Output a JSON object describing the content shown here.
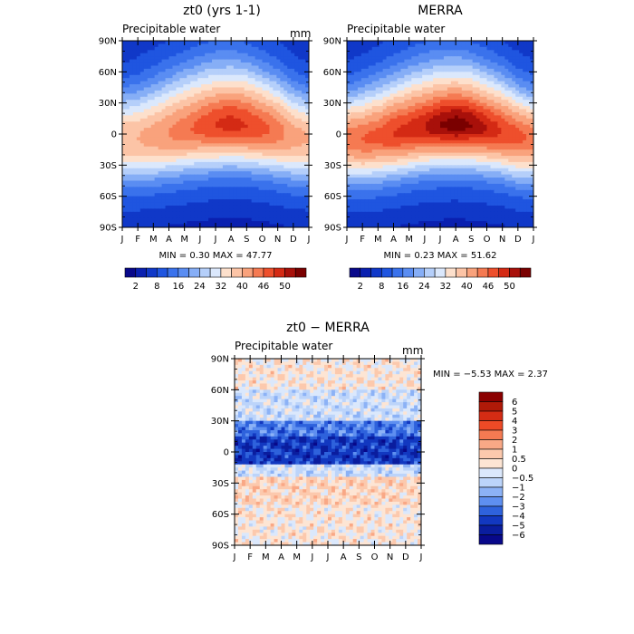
{
  "chart_data": [
    {
      "type": "heatmap",
      "title": "zt0 (yrs 1-1)",
      "subtitle": "Precipitable water",
      "units": "mm",
      "x": [
        "J",
        "F",
        "M",
        "A",
        "M",
        "J",
        "J",
        "A",
        "S",
        "O",
        "N",
        "D",
        "J"
      ],
      "y": [
        "90N",
        "60N",
        "30N",
        "0",
        "30S",
        "60S",
        "90S"
      ],
      "ylim": [
        -90,
        90
      ],
      "stats": "MIN =    0.30 MAX =   47.77",
      "colorbar": {
        "labels": [
          "2",
          "8",
          "16",
          "24",
          "32",
          "40",
          "46",
          "50"
        ],
        "colors": [
          "#08088a",
          "#0a20b0",
          "#1038c8",
          "#1f55e0",
          "#3a72ec",
          "#5a8df2",
          "#86aef6",
          "#b5cffa",
          "#dbe8fc",
          "#fde0cc",
          "#fcc4a6",
          "#f9a27c",
          "#f57a52",
          "#ee4f2c",
          "#d42a14",
          "#a8100a",
          "#7a0000"
        ]
      },
      "max_precip_by_month": [
        36,
        36,
        38,
        40,
        42,
        44,
        46,
        47,
        46,
        44,
        42,
        38,
        36
      ],
      "itcz_latitude_by_month": [
        -5,
        -5,
        -3,
        0,
        3,
        6,
        8,
        9,
        8,
        5,
        2,
        -3,
        -5
      ]
    },
    {
      "type": "heatmap",
      "title": "MERRA",
      "subtitle": "Precipitable water",
      "units": "",
      "x": [
        "J",
        "F",
        "M",
        "A",
        "M",
        "J",
        "J",
        "A",
        "S",
        "O",
        "N",
        "D",
        "J"
      ],
      "y": [
        "90N",
        "60N",
        "30N",
        "0",
        "30S",
        "60S",
        "90S"
      ],
      "ylim": [
        -90,
        90
      ],
      "stats": "MIN =    0.23 MAX =   51.62",
      "colorbar": {
        "labels": [
          "2",
          "8",
          "16",
          "24",
          "32",
          "40",
          "46",
          "50"
        ],
        "colors": [
          "#08088a",
          "#0a20b0",
          "#1038c8",
          "#1f55e0",
          "#3a72ec",
          "#5a8df2",
          "#86aef6",
          "#b5cffa",
          "#dbe8fc",
          "#fde0cc",
          "#fcc4a6",
          "#f9a27c",
          "#f57a52",
          "#ee4f2c",
          "#d42a14",
          "#a8100a",
          "#7a0000"
        ]
      },
      "max_precip_by_month": [
        42,
        43,
        44,
        46,
        47,
        48,
        50,
        51,
        50,
        48,
        46,
        44,
        42
      ],
      "itcz_latitude_by_month": [
        -5,
        -5,
        -3,
        0,
        3,
        6,
        8,
        9,
        8,
        5,
        2,
        -3,
        -5
      ]
    },
    {
      "type": "heatmap",
      "title": "zt0 − MERRA",
      "subtitle": "Precipitable water",
      "units": "mm",
      "x": [
        "J",
        "F",
        "M",
        "A",
        "M",
        "J",
        "J",
        "A",
        "S",
        "O",
        "N",
        "D",
        "J"
      ],
      "y": [
        "90N",
        "60N",
        "30N",
        "0",
        "30S",
        "60S",
        "90S"
      ],
      "ylim": [
        -90,
        90
      ],
      "stats": "MIN =  −5.53 MAX =    2.37",
      "colorbar": {
        "labels": [
          "6",
          "5",
          "4",
          "3",
          "2",
          "1",
          "0.5",
          "0",
          "−0.5",
          "−1",
          "−2",
          "−3",
          "−4",
          "−5",
          "−6"
        ],
        "colors": [
          "#8b0000",
          "#b01a08",
          "#d42c14",
          "#ee4a26",
          "#f57a52",
          "#f9a886",
          "#fcc9ad",
          "#fde5d4",
          "#dbe8fc",
          "#bcd4fa",
          "#8cb2f6",
          "#5e8ff0",
          "#2e62dc",
          "#1238c0",
          "#0a1d9e",
          "#08088a"
        ]
      },
      "latitude_band_difference": [
        {
          "lat_from": 90,
          "lat_to": 60,
          "diff": 0.2
        },
        {
          "lat_from": 60,
          "lat_to": 30,
          "diff": -0.5
        },
        {
          "lat_from": 30,
          "lat_to": 15,
          "diff": -3
        },
        {
          "lat_from": 15,
          "lat_to": -12,
          "diff": -4.5
        },
        {
          "lat_from": -12,
          "lat_to": -25,
          "diff": -0.5
        },
        {
          "lat_from": -25,
          "lat_to": -50,
          "diff": 0.5
        },
        {
          "lat_from": -50,
          "lat_to": -90,
          "diff": 0.2
        }
      ]
    }
  ]
}
